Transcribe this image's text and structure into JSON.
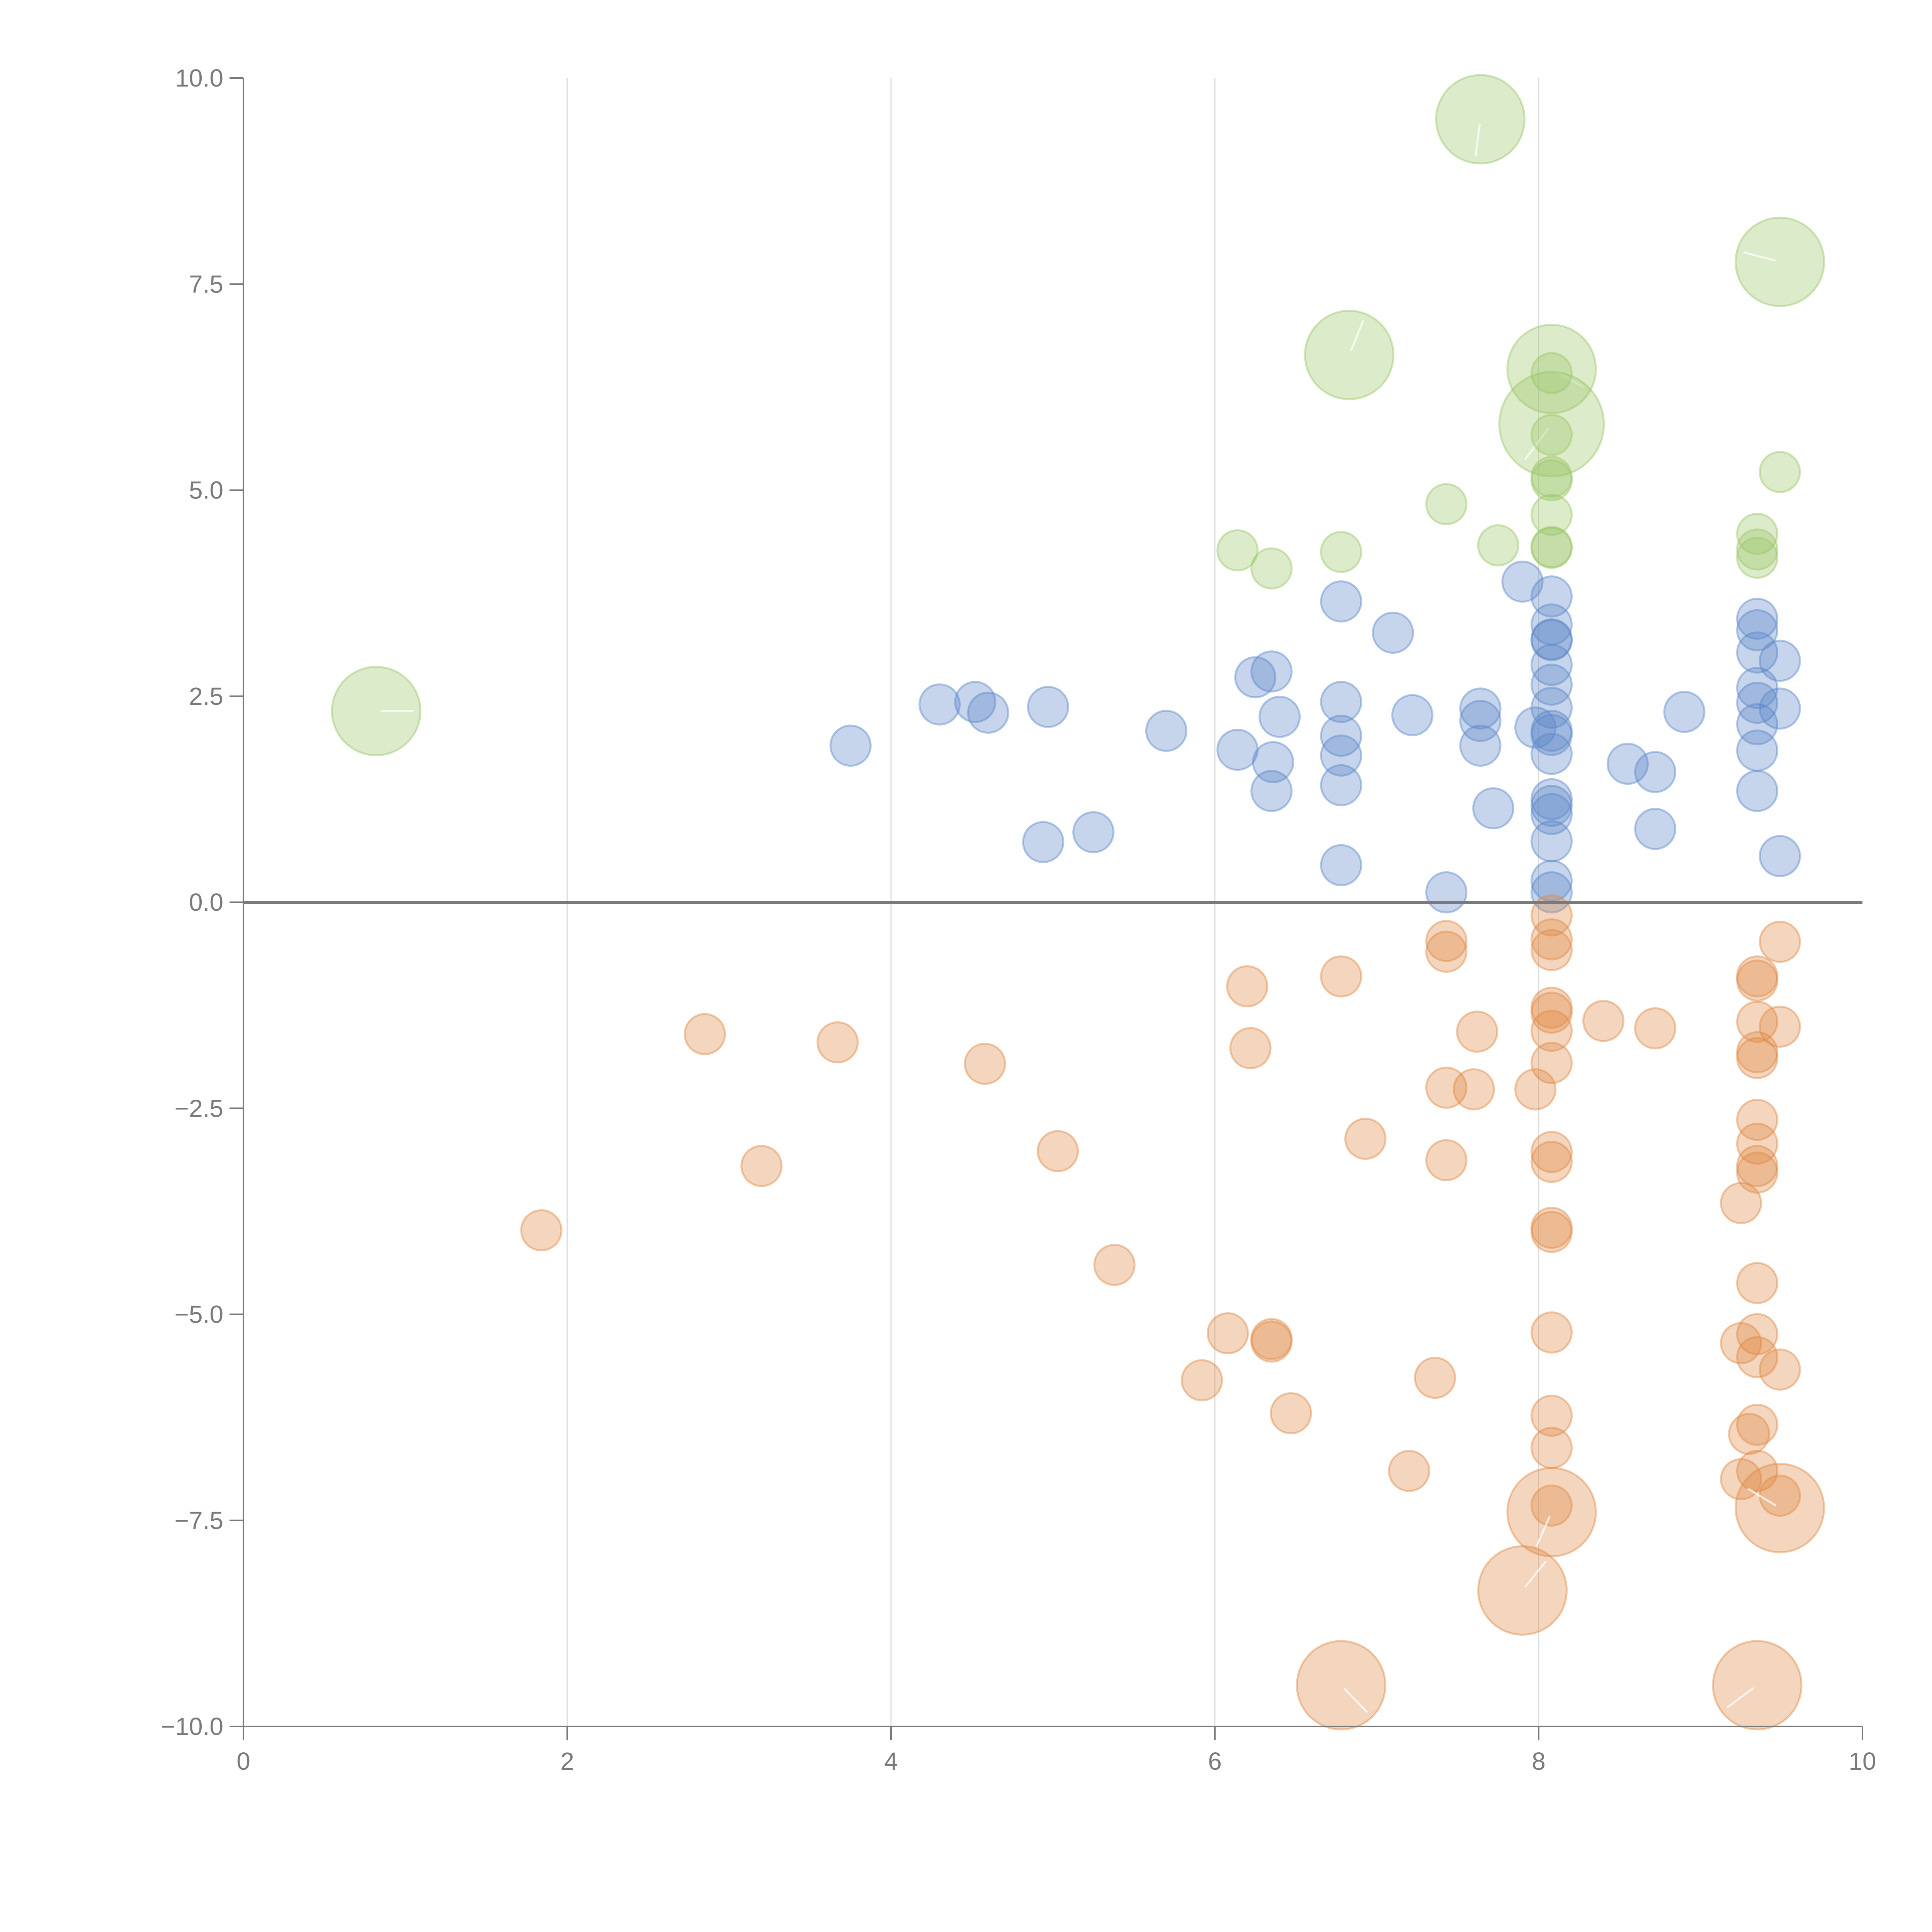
{
  "chart_data": {
    "type": "scatter",
    "title": "",
    "xlabel": "",
    "ylabel": "",
    "xlim": [
      0,
      10
    ],
    "ylim": [
      -10,
      10
    ],
    "x_ticks": [
      0,
      2,
      4,
      6,
      8,
      10
    ],
    "x_tick_labels": [
      "0",
      "2",
      "4",
      "6",
      "8",
      "10"
    ],
    "y_ticks": [
      10,
      7.5,
      5,
      2.5,
      0,
      -2.5,
      -5,
      -7.5,
      -10
    ],
    "y_tick_labels": [
      "10.0",
      "7.5",
      "5.0",
      "2.5",
      "0.0",
      "−2.5",
      "−5.0",
      "−7.5",
      "−10.0"
    ],
    "grid": "vertical",
    "zero_line": true,
    "colors": {
      "blue": "#5b87c9",
      "orange": "#e08a45",
      "green": "#9cc667"
    },
    "series": [
      {
        "name": "blue",
        "color_key": "blue",
        "points": [
          [
            3.75,
            1.9,
            1
          ],
          [
            4.3,
            2.4,
            1
          ],
          [
            4.52,
            2.43,
            1
          ],
          [
            4.6,
            2.3,
            1
          ],
          [
            4.97,
            2.37,
            1
          ],
          [
            4.94,
            0.73,
            1
          ],
          [
            5.25,
            0.85,
            1
          ],
          [
            5.7,
            2.08,
            1
          ],
          [
            6.14,
            1.85,
            1
          ],
          [
            6.25,
            2.73,
            1
          ],
          [
            6.35,
            2.8,
            1
          ],
          [
            6.4,
            2.25,
            1
          ],
          [
            6.36,
            1.7,
            1
          ],
          [
            6.35,
            1.35,
            1
          ],
          [
            6.78,
            3.65,
            1
          ],
          [
            6.78,
            2.43,
            1
          ],
          [
            6.78,
            2.02,
            1
          ],
          [
            6.78,
            1.78,
            1
          ],
          [
            6.78,
            1.42,
            1
          ],
          [
            6.78,
            0.45,
            1
          ],
          [
            7.1,
            3.27,
            1
          ],
          [
            7.22,
            2.27,
            1
          ],
          [
            7.43,
            0.12,
            1
          ],
          [
            7.64,
            2.35,
            1
          ],
          [
            7.64,
            2.2,
            1
          ],
          [
            7.64,
            1.9,
            1
          ],
          [
            7.72,
            1.14,
            1
          ],
          [
            7.9,
            3.89,
            1
          ],
          [
            7.98,
            2.12,
            1
          ],
          [
            8.08,
            3.71,
            1
          ],
          [
            8.08,
            3.37,
            1
          ],
          [
            8.08,
            3.19,
            1
          ],
          [
            8.08,
            3.18,
            1
          ],
          [
            8.08,
            2.88,
            1
          ],
          [
            8.08,
            2.64,
            1
          ],
          [
            8.08,
            2.36,
            1
          ],
          [
            8.08,
            2.08,
            1
          ],
          [
            8.08,
            2.03,
            1
          ],
          [
            8.08,
            1.8,
            1
          ],
          [
            8.08,
            1.25,
            1
          ],
          [
            8.08,
            1.17,
            1
          ],
          [
            8.08,
            1.07,
            1
          ],
          [
            8.08,
            0.74,
            1
          ],
          [
            8.08,
            0.26,
            1
          ],
          [
            8.08,
            0.12,
            1
          ],
          [
            8.55,
            1.68,
            1
          ],
          [
            8.72,
            1.58,
            1
          ],
          [
            8.72,
            0.89,
            1
          ],
          [
            8.9,
            2.31,
            1
          ],
          [
            9.35,
            3.44,
            1
          ],
          [
            9.35,
            3.3,
            1
          ],
          [
            9.35,
            3.03,
            1
          ],
          [
            9.35,
            2.6,
            1
          ],
          [
            9.35,
            2.42,
            1
          ],
          [
            9.35,
            2.16,
            1
          ],
          [
            9.35,
            1.84,
            1
          ],
          [
            9.35,
            1.35,
            1
          ],
          [
            9.49,
            2.93,
            1
          ],
          [
            9.49,
            2.35,
            1
          ],
          [
            9.49,
            0.56,
            1
          ]
        ]
      },
      {
        "name": "orange",
        "color_key": "orange",
        "points": [
          [
            1.84,
            -3.98,
            1
          ],
          [
            2.85,
            -1.6,
            1
          ],
          [
            3.2,
            -3.2,
            1
          ],
          [
            3.67,
            -1.7,
            1
          ],
          [
            4.58,
            -1.96,
            1
          ],
          [
            5.03,
            -3.02,
            1
          ],
          [
            5.38,
            -4.4,
            1
          ],
          [
            5.92,
            -5.8,
            1
          ],
          [
            6.08,
            -5.23,
            1
          ],
          [
            6.2,
            -1.02,
            1
          ],
          [
            6.22,
            -1.77,
            1
          ],
          [
            6.35,
            -5.33,
            1
          ],
          [
            6.35,
            -5.3,
            1
          ],
          [
            6.47,
            -6.2,
            1
          ],
          [
            6.78,
            -0.9,
            1
          ],
          [
            6.93,
            -2.87,
            1
          ],
          [
            7.2,
            -6.9,
            1
          ],
          [
            7.36,
            -5.77,
            1
          ],
          [
            7.43,
            -0.47,
            1
          ],
          [
            7.43,
            -0.6,
            1
          ],
          [
            7.43,
            -2.25,
            1
          ],
          [
            7.43,
            -3.13,
            1
          ],
          [
            7.6,
            -2.27,
            1
          ],
          [
            7.62,
            -1.57,
            1
          ],
          [
            7.98,
            -2.27,
            1
          ],
          [
            8.08,
            -0.16,
            1
          ],
          [
            8.08,
            -0.45,
            1
          ],
          [
            8.08,
            -0.58,
            1
          ],
          [
            8.08,
            -1.28,
            1
          ],
          [
            8.08,
            -1.34,
            1
          ],
          [
            8.08,
            -1.56,
            1
          ],
          [
            8.08,
            -1.95,
            1
          ],
          [
            8.08,
            -3.03,
            1
          ],
          [
            8.08,
            -3.15,
            1
          ],
          [
            8.08,
            -3.95,
            1
          ],
          [
            8.08,
            -4.0,
            1
          ],
          [
            8.08,
            -5.22,
            1
          ],
          [
            8.08,
            -6.23,
            1
          ],
          [
            8.08,
            -6.62,
            1
          ],
          [
            8.08,
            -7.32,
            1
          ],
          [
            8.4,
            -1.44,
            1
          ],
          [
            8.72,
            -1.53,
            1
          ],
          [
            9.25,
            -3.65,
            1
          ],
          [
            9.25,
            -5.35,
            1
          ],
          [
            9.25,
            -7.0,
            1
          ],
          [
            9.3,
            -6.45,
            1
          ],
          [
            9.35,
            -0.9,
            1
          ],
          [
            9.35,
            -0.95,
            1
          ],
          [
            9.35,
            -1.45,
            1
          ],
          [
            9.35,
            -1.82,
            1
          ],
          [
            9.35,
            -1.89,
            1
          ],
          [
            9.35,
            -2.64,
            1
          ],
          [
            9.35,
            -2.93,
            1
          ],
          [
            9.35,
            -3.2,
            1
          ],
          [
            9.35,
            -3.28,
            1
          ],
          [
            9.35,
            -4.62,
            1
          ],
          [
            9.35,
            -5.24,
            1
          ],
          [
            9.35,
            -5.52,
            1
          ],
          [
            9.35,
            -6.34,
            1
          ],
          [
            9.35,
            -6.9,
            1
          ],
          [
            9.49,
            -0.48,
            1
          ],
          [
            9.49,
            -1.51,
            1
          ],
          [
            9.49,
            -5.67,
            1
          ],
          [
            9.49,
            -7.2,
            1
          ],
          [
            8.08,
            -7.4,
            2.2
          ],
          [
            9.49,
            -7.35,
            2.2
          ],
          [
            7.9,
            -8.35,
            2.2
          ],
          [
            6.78,
            -9.5,
            2.2
          ],
          [
            9.35,
            -9.5,
            2.2
          ]
        ]
      },
      {
        "name": "green",
        "color_key": "green",
        "points": [
          [
            0.82,
            2.32,
            2.2
          ],
          [
            7.64,
            9.5,
            2.2
          ],
          [
            9.49,
            7.77,
            2.2
          ],
          [
            6.83,
            6.64,
            2.2
          ],
          [
            8.08,
            6.47,
            2.2
          ],
          [
            8.08,
            5.8,
            2.6
          ],
          [
            9.49,
            5.22,
            1
          ],
          [
            8.08,
            6.42,
            1
          ],
          [
            8.08,
            5.67,
            1
          ],
          [
            8.08,
            5.16,
            1
          ],
          [
            8.08,
            5.12,
            1
          ],
          [
            8.08,
            4.7,
            1
          ],
          [
            8.08,
            4.31,
            1
          ],
          [
            8.08,
            4.3,
            1
          ],
          [
            7.43,
            4.83,
            1
          ],
          [
            7.75,
            4.33,
            1
          ],
          [
            6.78,
            4.25,
            1
          ],
          [
            6.14,
            4.27,
            1
          ],
          [
            6.35,
            4.05,
            1
          ],
          [
            9.35,
            4.47,
            1
          ],
          [
            9.35,
            4.28,
            1
          ],
          [
            9.35,
            4.18,
            1
          ]
        ]
      }
    ]
  }
}
